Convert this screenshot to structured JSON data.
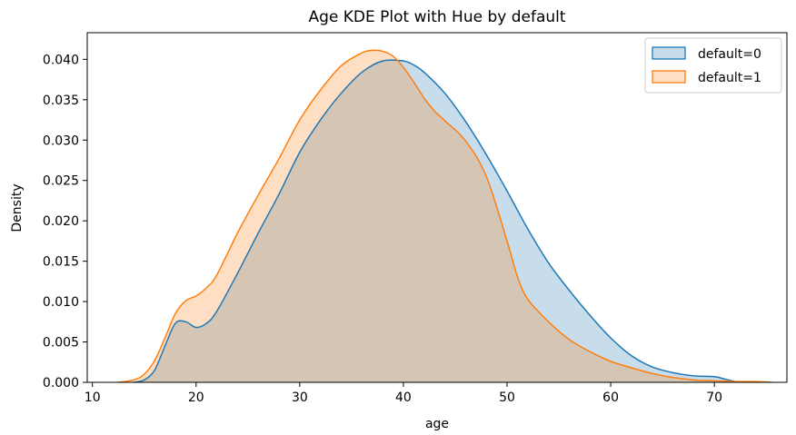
{
  "chart_data": {
    "type": "area",
    "title": "Age KDE Plot with Hue by default",
    "xlabel": "age",
    "ylabel": "Density",
    "xlim": [
      9.5,
      77
    ],
    "ylim": [
      0,
      0.0433
    ],
    "xticks": [
      10,
      20,
      30,
      40,
      50,
      60,
      70
    ],
    "xtick_labels": [
      "10",
      "20",
      "30",
      "40",
      "50",
      "60",
      "70"
    ],
    "yticks": [
      0,
      0.005,
      0.01,
      0.015,
      0.02,
      0.025,
      0.03,
      0.035,
      0.04
    ],
    "ytick_labels": [
      "0.000",
      "0.005",
      "0.010",
      "0.015",
      "0.020",
      "0.025",
      "0.030",
      "0.035",
      "0.040"
    ],
    "grid": false,
    "legend_position": "top-right",
    "series": [
      {
        "name": "default=0",
        "color": "#1f77b4",
        "fill": "#1f77b4",
        "fill_opacity": 0.25,
        "x": [
          14,
          15,
          16,
          17,
          18,
          19,
          20,
          21,
          22,
          24,
          26,
          28,
          30,
          32,
          34,
          36,
          38,
          40,
          41,
          42,
          44,
          46,
          48,
          50,
          52,
          54,
          56,
          58,
          60,
          62,
          64,
          66,
          68,
          70,
          71,
          72
        ],
        "y": [
          0,
          0.0003,
          0.0015,
          0.0045,
          0.0073,
          0.0075,
          0.0068,
          0.0073,
          0.0088,
          0.0135,
          0.0185,
          0.0233,
          0.0285,
          0.0325,
          0.0358,
          0.0384,
          0.0398,
          0.0398,
          0.0393,
          0.0384,
          0.0358,
          0.0323,
          0.0282,
          0.0237,
          0.019,
          0.0148,
          0.0114,
          0.0083,
          0.0055,
          0.0033,
          0.0019,
          0.0012,
          0.0008,
          0.0007,
          0.0004,
          0.0001
        ]
      },
      {
        "name": "default=1",
        "color": "#ff7f0e",
        "fill": "#ff7f0e",
        "fill_opacity": 0.25,
        "x": [
          12.5,
          14,
          15,
          16,
          17,
          18,
          19,
          20,
          21,
          22,
          24,
          26,
          28,
          30,
          32,
          34,
          36,
          37,
          38,
          39,
          40,
          41,
          42,
          43,
          44,
          46,
          48,
          50,
          51,
          52,
          54,
          56,
          58,
          60,
          62,
          64,
          66,
          68,
          70,
          72,
          74,
          75.5
        ],
        "y": [
          0,
          0.0003,
          0.001,
          0.0027,
          0.0055,
          0.0085,
          0.0101,
          0.0107,
          0.0117,
          0.0133,
          0.0185,
          0.0232,
          0.0277,
          0.0325,
          0.0362,
          0.0392,
          0.0408,
          0.0411,
          0.041,
          0.0404,
          0.039,
          0.0372,
          0.0352,
          0.0336,
          0.0324,
          0.0299,
          0.0255,
          0.0175,
          0.0131,
          0.0103,
          0.0075,
          0.0053,
          0.0038,
          0.0026,
          0.0018,
          0.0011,
          0.0006,
          0.0003,
          0.0002,
          0.0001,
          0.0001,
          0
        ]
      }
    ]
  }
}
